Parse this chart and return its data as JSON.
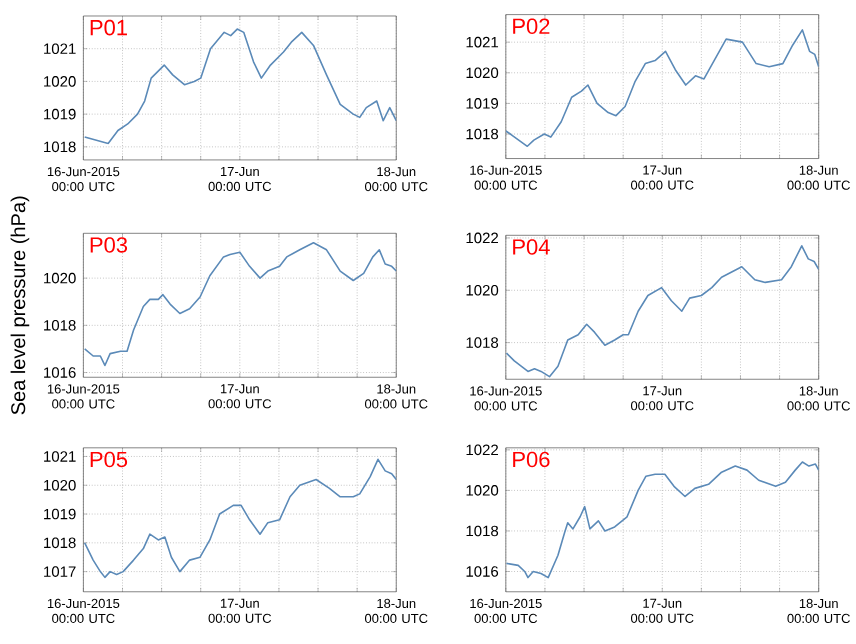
{
  "chart_data": [
    {
      "type": "line",
      "title": "P01",
      "color": "#5b8ab8",
      "grid": true,
      "xlim": [
        "2015-06-16T00:00",
        "2015-06-18T00:00"
      ],
      "ylim": [
        1017.6,
        1022.0
      ],
      "yticks": [
        1018,
        1019,
        1020,
        1021
      ],
      "xticks": [
        {
          "value": "2015-06-16T00:00",
          "label": "16-Jun-2015 00:00 UTC"
        },
        {
          "value": "2015-06-16T06:00",
          "label": null
        },
        {
          "value": "2015-06-16T12:00",
          "label": null
        },
        {
          "value": "2015-06-16T18:00",
          "label": null
        },
        {
          "value": "2015-06-17T00:00",
          "label": "17-Jun 00:00 UTC"
        },
        {
          "value": "2015-06-17T06:00",
          "label": null
        },
        {
          "value": "2015-06-17T12:00",
          "label": null
        },
        {
          "value": "2015-06-17T18:00",
          "label": null
        },
        {
          "value": "2015-06-18T00:00",
          "label": "18-Jun 00:00 UTC"
        }
      ],
      "x": [
        "2015-06-16T00:12",
        "2015-06-16T03:48",
        "2015-06-16T05:18",
        "2015-06-16T06:48",
        "2015-06-16T08:18",
        "2015-06-16T09:24",
        "2015-06-16T10:24",
        "2015-06-16T12:24",
        "2015-06-16T13:42",
        "2015-06-16T15:30",
        "2015-06-16T17:00",
        "2015-06-16T18:00",
        "2015-06-16T19:30",
        "2015-06-16T21:36",
        "2015-06-16T22:36",
        "2015-06-16T23:36",
        "2015-06-17T00:36",
        "2015-06-17T02:06",
        "2015-06-17T03:18",
        "2015-06-17T04:42",
        "2015-06-17T06:42",
        "2015-06-17T07:54",
        "2015-06-17T09:30",
        "2015-06-17T11:18",
        "2015-06-17T13:18",
        "2015-06-17T15:24",
        "2015-06-17T17:24",
        "2015-06-17T18:24",
        "2015-06-17T19:24",
        "2015-06-17T21:00",
        "2015-06-17T22:00",
        "2015-06-17T23:00",
        "2015-06-18T00:00"
      ],
      "values": [
        1018.3,
        1018.1,
        1018.5,
        1018.7,
        1019.0,
        1019.4,
        1020.1,
        1020.5,
        1020.2,
        1019.9,
        1020.0,
        1020.1,
        1021.0,
        1021.5,
        1021.4,
        1021.6,
        1021.5,
        1020.6,
        1020.1,
        1020.5,
        1020.9,
        1021.2,
        1021.5,
        1021.1,
        1020.2,
        1019.3,
        1019.0,
        1018.9,
        1019.2,
        1019.4,
        1018.8,
        1019.2,
        1018.8
      ]
    },
    {
      "type": "line",
      "title": "P02",
      "color": "#5b8ab8",
      "grid": true,
      "xlim": [
        "2015-06-16T00:00",
        "2015-06-18T00:00"
      ],
      "ylim": [
        1017.2,
        1021.9
      ],
      "yticks": [
        1018,
        1019,
        1020,
        1021
      ],
      "xticks": [
        {
          "value": "2015-06-16T00:00",
          "label": "16-Jun-2015 00:00 UTC"
        },
        {
          "value": "2015-06-16T06:00",
          "label": null
        },
        {
          "value": "2015-06-16T12:00",
          "label": null
        },
        {
          "value": "2015-06-16T18:00",
          "label": null
        },
        {
          "value": "2015-06-17T00:00",
          "label": "17-Jun 00:00 UTC"
        },
        {
          "value": "2015-06-17T06:00",
          "label": null
        },
        {
          "value": "2015-06-17T12:00",
          "label": null
        },
        {
          "value": "2015-06-17T18:00",
          "label": null
        },
        {
          "value": "2015-06-18T00:00",
          "label": "18-Jun 00:00 UTC"
        }
      ],
      "x": [
        "2015-06-16T00:00",
        "2015-06-16T00:42",
        "2015-06-16T03:18",
        "2015-06-16T04:18",
        "2015-06-16T05:54",
        "2015-06-16T06:54",
        "2015-06-16T08:30",
        "2015-06-16T10:06",
        "2015-06-16T11:36",
        "2015-06-16T12:36",
        "2015-06-16T14:00",
        "2015-06-16T15:42",
        "2015-06-16T16:54",
        "2015-06-16T18:18",
        "2015-06-16T19:48",
        "2015-06-16T21:24",
        "2015-06-16T22:54",
        "2015-06-17T00:30",
        "2015-06-17T02:00",
        "2015-06-17T03:36",
        "2015-06-17T05:06",
        "2015-06-17T06:24",
        "2015-06-17T07:42",
        "2015-06-17T09:48",
        "2015-06-17T12:18",
        "2015-06-17T14:24",
        "2015-06-17T16:24",
        "2015-06-17T18:30",
        "2015-06-17T20:00",
        "2015-06-17T21:30",
        "2015-06-17T22:36",
        "2015-06-17T23:24",
        "2015-06-18T00:00"
      ],
      "values": [
        1018.1,
        1018.0,
        1017.6,
        1017.8,
        1018.0,
        1017.9,
        1018.4,
        1019.2,
        1019.4,
        1019.6,
        1019.0,
        1018.7,
        1018.6,
        1018.9,
        1019.7,
        1020.3,
        1020.4,
        1020.7,
        1020.1,
        1019.6,
        1019.9,
        1019.8,
        1020.3,
        1021.1,
        1021.0,
        1020.3,
        1020.2,
        1020.3,
        1020.9,
        1021.4,
        1020.7,
        1020.6,
        1020.2
      ]
    },
    {
      "type": "line",
      "title": "P03",
      "ylabel": "Sea level pressure (hPa)",
      "color": "#5b8ab8",
      "grid": true,
      "xlim": [
        "2015-06-16T00:00",
        "2015-06-18T00:00"
      ],
      "ylim": [
        1015.8,
        1021.9
      ],
      "yticks": [
        1016,
        1018,
        1020
      ],
      "xticks": [
        {
          "value": "2015-06-16T00:00",
          "label": "16-Jun-2015 00:00 UTC"
        },
        {
          "value": "2015-06-16T06:00",
          "label": null
        },
        {
          "value": "2015-06-16T12:00",
          "label": null
        },
        {
          "value": "2015-06-16T18:00",
          "label": null
        },
        {
          "value": "2015-06-17T00:00",
          "label": "17-Jun 00:00 UTC"
        },
        {
          "value": "2015-06-17T06:00",
          "label": null
        },
        {
          "value": "2015-06-17T12:00",
          "label": null
        },
        {
          "value": "2015-06-17T18:00",
          "label": null
        },
        {
          "value": "2015-06-18T00:00",
          "label": "18-Jun 00:00 UTC"
        }
      ],
      "x": [
        "2015-06-16T00:12",
        "2015-06-16T01:30",
        "2015-06-16T02:36",
        "2015-06-16T03:18",
        "2015-06-16T04:06",
        "2015-06-16T05:42",
        "2015-06-16T06:42",
        "2015-06-16T07:42",
        "2015-06-16T09:12",
        "2015-06-16T10:12",
        "2015-06-16T11:30",
        "2015-06-16T12:12",
        "2015-06-16T13:18",
        "2015-06-16T14:48",
        "2015-06-16T16:18",
        "2015-06-16T17:54",
        "2015-06-16T19:24",
        "2015-06-16T21:30",
        "2015-06-16T22:30",
        "2015-06-17T00:00",
        "2015-06-17T01:30",
        "2015-06-17T03:06",
        "2015-06-17T04:18",
        "2015-06-17T06:06",
        "2015-06-17T07:12",
        "2015-06-17T09:12",
        "2015-06-17T11:18",
        "2015-06-17T13:18",
        "2015-06-17T15:24",
        "2015-06-17T17:24",
        "2015-06-17T19:00",
        "2015-06-17T20:24",
        "2015-06-17T21:24",
        "2015-06-17T22:18",
        "2015-06-17T23:18",
        "2015-06-18T00:00"
      ],
      "values": [
        1017.0,
        1016.7,
        1016.7,
        1016.3,
        1016.8,
        1016.9,
        1016.9,
        1017.8,
        1018.8,
        1019.1,
        1019.1,
        1019.3,
        1018.9,
        1018.5,
        1018.7,
        1019.2,
        1020.1,
        1020.9,
        1021.0,
        1021.1,
        1020.5,
        1020.0,
        1020.3,
        1020.5,
        1020.9,
        1021.2,
        1021.5,
        1021.2,
        1020.3,
        1019.9,
        1020.2,
        1020.9,
        1021.2,
        1020.6,
        1020.5,
        1020.3
      ]
    },
    {
      "type": "line",
      "title": "P04",
      "color": "#5b8ab8",
      "grid": true,
      "xlim": [
        "2015-06-16T00:00",
        "2015-06-18T00:00"
      ],
      "ylim": [
        1016.6,
        1022.1
      ],
      "yticks": [
        1018,
        1020,
        1022
      ],
      "xticks": [
        {
          "value": "2015-06-16T00:00",
          "label": "16-Jun-2015 00:00 UTC"
        },
        {
          "value": "2015-06-16T06:00",
          "label": null
        },
        {
          "value": "2015-06-16T12:00",
          "label": null
        },
        {
          "value": "2015-06-16T18:00",
          "label": null
        },
        {
          "value": "2015-06-17T00:00",
          "label": "17-Jun 00:00 UTC"
        },
        {
          "value": "2015-06-17T06:00",
          "label": null
        },
        {
          "value": "2015-06-17T12:00",
          "label": null
        },
        {
          "value": "2015-06-17T18:00",
          "label": null
        },
        {
          "value": "2015-06-18T00:00",
          "label": "18-Jun 00:00 UTC"
        }
      ],
      "x": [
        "2015-06-16T00:06",
        "2015-06-16T01:18",
        "2015-06-16T03:24",
        "2015-06-16T04:24",
        "2015-06-16T05:24",
        "2015-06-16T06:42",
        "2015-06-16T08:00",
        "2015-06-16T09:30",
        "2015-06-16T11:06",
        "2015-06-16T12:24",
        "2015-06-16T13:36",
        "2015-06-16T15:12",
        "2015-06-16T16:42",
        "2015-06-16T18:00",
        "2015-06-16T18:48",
        "2015-06-16T20:18",
        "2015-06-16T21:48",
        "2015-06-16T23:54",
        "2015-06-17T01:24",
        "2015-06-17T03:00",
        "2015-06-17T04:12",
        "2015-06-17T06:00",
        "2015-06-17T07:36",
        "2015-06-17T09:06",
        "2015-06-17T12:12",
        "2015-06-17T14:12",
        "2015-06-17T15:48",
        "2015-06-17T18:18",
        "2015-06-17T19:48",
        "2015-06-17T21:24",
        "2015-06-17T22:24",
        "2015-06-17T23:18",
        "2015-06-18T00:00"
      ],
      "values": [
        1017.6,
        1017.3,
        1016.9,
        1017.0,
        1016.9,
        1016.7,
        1017.1,
        1018.1,
        1018.3,
        1018.7,
        1018.4,
        1017.9,
        1018.1,
        1018.3,
        1018.3,
        1019.2,
        1019.8,
        1020.1,
        1019.6,
        1019.2,
        1019.7,
        1019.8,
        1020.1,
        1020.5,
        1020.9,
        1020.4,
        1020.3,
        1020.4,
        1020.9,
        1021.7,
        1021.2,
        1021.1,
        1020.8
      ]
    },
    {
      "type": "line",
      "title": "P05",
      "color": "#5b8ab8",
      "grid": true,
      "xlim": [
        "2015-06-16T00:00",
        "2015-06-18T00:00"
      ],
      "ylim": [
        1016.3,
        1021.3
      ],
      "yticks": [
        1017,
        1018,
        1019,
        1020,
        1021
      ],
      "xticks": [
        {
          "value": "2015-06-16T00:00",
          "label": "16-Jun-2015 00:00 UTC"
        },
        {
          "value": "2015-06-16T06:00",
          "label": null
        },
        {
          "value": "2015-06-16T12:00",
          "label": null
        },
        {
          "value": "2015-06-16T18:00",
          "label": null
        },
        {
          "value": "2015-06-17T00:00",
          "label": "17-Jun 00:00 UTC"
        },
        {
          "value": "2015-06-17T06:00",
          "label": null
        },
        {
          "value": "2015-06-17T12:00",
          "label": null
        },
        {
          "value": "2015-06-17T18:00",
          "label": null
        },
        {
          "value": "2015-06-18T00:00",
          "label": "18-Jun 00:00 UTC"
        }
      ],
      "x": [
        "2015-06-16T00:12",
        "2015-06-16T01:30",
        "2015-06-16T02:36",
        "2015-06-16T03:18",
        "2015-06-16T04:06",
        "2015-06-16T05:06",
        "2015-06-16T06:06",
        "2015-06-16T07:42",
        "2015-06-16T09:12",
        "2015-06-16T10:12",
        "2015-06-16T11:30",
        "2015-06-16T12:30",
        "2015-06-16T13:30",
        "2015-06-16T14:48",
        "2015-06-16T16:18",
        "2015-06-16T17:54",
        "2015-06-16T19:24",
        "2015-06-16T20:54",
        "2015-06-16T23:00",
        "2015-06-17T00:12",
        "2015-06-17T01:30",
        "2015-06-17T03:06",
        "2015-06-17T04:18",
        "2015-06-17T06:06",
        "2015-06-17T07:42",
        "2015-06-17T09:12",
        "2015-06-17T11:42",
        "2015-06-17T13:42",
        "2015-06-17T15:24",
        "2015-06-17T17:24",
        "2015-06-17T18:24",
        "2015-06-17T20:00",
        "2015-06-17T21:12",
        "2015-06-17T22:18",
        "2015-06-17T23:18",
        "2015-06-18T00:00"
      ],
      "values": [
        1018.0,
        1017.4,
        1017.0,
        1016.8,
        1017.0,
        1016.9,
        1017.0,
        1017.4,
        1017.8,
        1018.3,
        1018.1,
        1018.2,
        1017.5,
        1017.0,
        1017.4,
        1017.5,
        1018.1,
        1019.0,
        1019.3,
        1019.3,
        1018.8,
        1018.3,
        1018.7,
        1018.8,
        1019.6,
        1020.0,
        1020.2,
        1019.9,
        1019.6,
        1019.6,
        1019.7,
        1020.3,
        1020.9,
        1020.5,
        1020.4,
        1020.2
      ]
    },
    {
      "type": "line",
      "title": "P06",
      "color": "#5b8ab8",
      "grid": true,
      "xlim": [
        "2015-06-16T00:00",
        "2015-06-18T00:00"
      ],
      "ylim": [
        1015.0,
        1022.1
      ],
      "yticks": [
        1016,
        1018,
        1020,
        1022
      ],
      "xticks": [
        {
          "value": "2015-06-16T00:00",
          "label": "16-Jun-2015 00:00 UTC"
        },
        {
          "value": "2015-06-16T06:00",
          "label": null
        },
        {
          "value": "2015-06-16T12:00",
          "label": null
        },
        {
          "value": "2015-06-16T18:00",
          "label": null
        },
        {
          "value": "2015-06-17T00:00",
          "label": "17-Jun 00:00 UTC"
        },
        {
          "value": "2015-06-17T06:00",
          "label": null
        },
        {
          "value": "2015-06-17T12:00",
          "label": null
        },
        {
          "value": "2015-06-17T18:00",
          "label": null
        },
        {
          "value": "2015-06-18T00:00",
          "label": "18-Jun 00:00 UTC"
        }
      ],
      "x": [
        "2015-06-16T00:06",
        "2015-06-16T01:54",
        "2015-06-16T02:54",
        "2015-06-16T03:24",
        "2015-06-16T04:12",
        "2015-06-16T05:24",
        "2015-06-16T06:30",
        "2015-06-16T08:00",
        "2015-06-16T09:00",
        "2015-06-16T09:30",
        "2015-06-16T10:18",
        "2015-06-16T11:24",
        "2015-06-16T12:06",
        "2015-06-16T12:54",
        "2015-06-16T14:12",
        "2015-06-16T15:12",
        "2015-06-16T16:42",
        "2015-06-16T18:36",
        "2015-06-16T20:18",
        "2015-06-16T21:30",
        "2015-06-16T22:54",
        "2015-06-17T00:24",
        "2015-06-17T01:48",
        "2015-06-17T03:30",
        "2015-06-17T05:00",
        "2015-06-17T07:06",
        "2015-06-17T09:06",
        "2015-06-17T11:12",
        "2015-06-17T13:00",
        "2015-06-17T14:48",
        "2015-06-17T17:24",
        "2015-06-17T18:54",
        "2015-06-17T20:24",
        "2015-06-17T21:30",
        "2015-06-17T22:30",
        "2015-06-17T23:30",
        "2015-06-18T00:00"
      ],
      "values": [
        1016.4,
        1016.3,
        1016.0,
        1015.7,
        1016.0,
        1015.9,
        1015.7,
        1016.8,
        1017.9,
        1018.4,
        1018.1,
        1018.7,
        1019.2,
        1018.1,
        1018.5,
        1018.0,
        1018.2,
        1018.7,
        1020.0,
        1020.7,
        1020.8,
        1020.8,
        1020.2,
        1019.7,
        1020.1,
        1020.3,
        1020.9,
        1021.2,
        1021.0,
        1020.5,
        1020.2,
        1020.4,
        1021.0,
        1021.4,
        1021.2,
        1021.3,
        1021.0
      ]
    }
  ]
}
